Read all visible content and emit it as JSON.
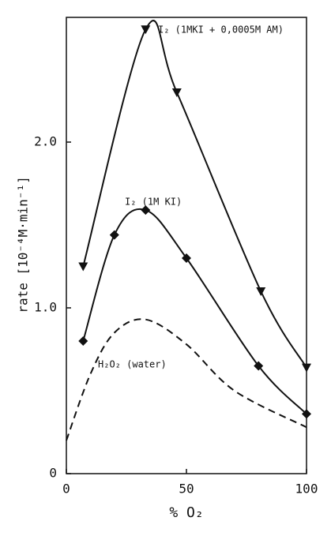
{
  "chart_data": {
    "type": "line",
    "y_label": "rate [10⁻⁴M·min⁻¹]",
    "x_label": "% O₂",
    "xlim": [
      0,
      100
    ],
    "ylim": [
      0,
      2.75
    ],
    "xticks": [
      0,
      50,
      100
    ],
    "yticks": [
      0,
      {
        "value": 1,
        "label": "1.0"
      },
      {
        "value": 2,
        "label": "2.0"
      }
    ],
    "series": [
      {
        "name": "I₂ (1MKI + 0,0005M AM)",
        "color": "#111111",
        "marker": "triangle",
        "dash": false,
        "x": [
          7,
          33,
          46,
          81,
          100
        ],
        "values": [
          1.25,
          2.68,
          2.3,
          1.1,
          0.64
        ]
      },
      {
        "name": "I₂ (1M KI)",
        "color": "#111111",
        "marker": "diamond",
        "dash": false,
        "x": [
          7,
          20,
          33,
          50,
          80,
          100
        ],
        "values": [
          0.8,
          1.44,
          1.59,
          1.3,
          0.65,
          0.36
        ]
      },
      {
        "name": "H₂O₂ (water)",
        "color": "#111111",
        "marker": "none",
        "dash": true,
        "x": [
          0,
          10,
          20,
          33,
          50,
          70,
          100
        ],
        "values": [
          0.2,
          0.6,
          0.85,
          0.93,
          0.78,
          0.5,
          0.28
        ]
      }
    ]
  }
}
